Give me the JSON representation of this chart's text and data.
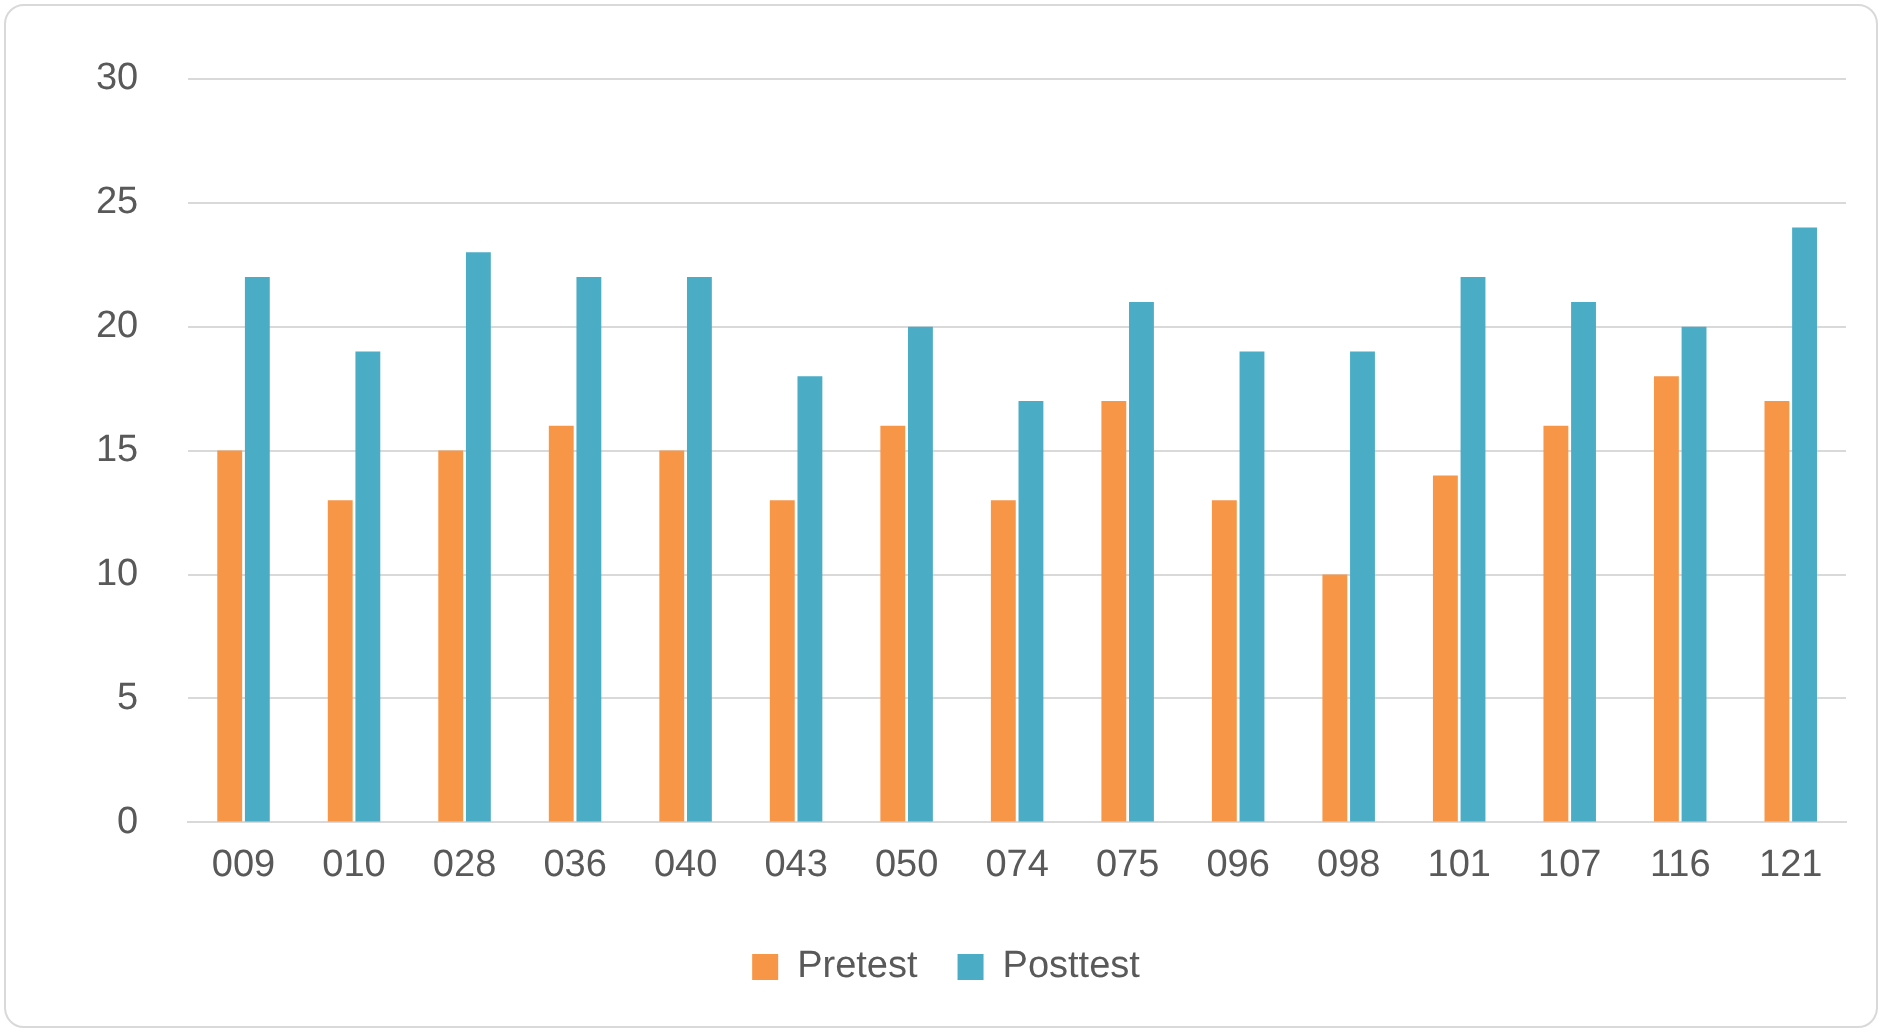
{
  "chart_data": {
    "type": "bar",
    "categories": [
      "009",
      "010",
      "028",
      "036",
      "040",
      "043",
      "050",
      "074",
      "075",
      "096",
      "098",
      "101",
      "107",
      "116",
      "121"
    ],
    "series": [
      {
        "name": "Pretest",
        "color": "#f79646",
        "values": [
          15,
          13,
          15,
          16,
          15,
          13,
          16,
          13,
          17,
          13,
          10,
          14,
          16,
          18,
          17
        ]
      },
      {
        "name": "Posttest",
        "color": "#4bacc6",
        "values": [
          22,
          19,
          23,
          22,
          22,
          18,
          20,
          17,
          21,
          19,
          19,
          22,
          21,
          20,
          24
        ]
      }
    ],
    "ylim": [
      0,
      30
    ],
    "yticks": [
      0,
      5,
      10,
      15,
      20,
      25,
      30
    ],
    "grid": "y",
    "legend": "bottom"
  }
}
